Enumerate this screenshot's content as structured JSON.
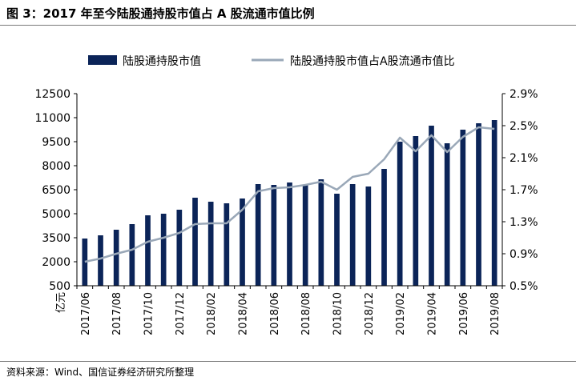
{
  "title": "图 3：2017 年至今陆股通持股市值占 A 股流通市值比例",
  "source": "资料来源：Wind、国信证券经济研究所整理",
  "chart_data": {
    "type": "bar",
    "title": "",
    "xlabel": "",
    "ylabel": "亿元",
    "y2label": "",
    "ylim": [
      500,
      12500
    ],
    "y2lim": [
      0.5,
      2.9
    ],
    "yticks": [
      "500",
      "2000",
      "3500",
      "5000",
      "6500",
      "8000",
      "9500",
      "11000",
      "12500"
    ],
    "y2ticks": [
      "0.5%",
      "0.9%",
      "1.3%",
      "1.7%",
      "2.1%",
      "2.5%",
      "2.9%"
    ],
    "xtick_labels": [
      "2017/06",
      "2017/08",
      "2017/10",
      "2017/12",
      "2018/02",
      "2018/04",
      "2018/06",
      "2018/08",
      "2018/10",
      "2018/12",
      "2019/02",
      "2019/04",
      "2019/06",
      "2019/08"
    ],
    "legend_position": "top",
    "grid": false,
    "colors": {
      "bar": "#0b2458",
      "line": "#9aa8b8"
    },
    "series": [
      {
        "name": "陆股通持股市值",
        "type": "bar",
        "axis": "left",
        "values": [
          3450,
          3650,
          4000,
          4350,
          4900,
          5000,
          5250,
          6000,
          5750,
          5650,
          5950,
          6850,
          6800,
          6950,
          6800,
          7150,
          6250,
          6850,
          6700,
          7800,
          9500,
          9850,
          10500,
          9400,
          10250,
          10650,
          10850
        ]
      },
      {
        "name": "陆股通持股市值占A股流通市值比",
        "type": "line",
        "axis": "right",
        "values": [
          0.8,
          0.84,
          0.9,
          0.95,
          1.05,
          1.1,
          1.16,
          1.27,
          1.28,
          1.28,
          1.45,
          1.68,
          1.72,
          1.73,
          1.76,
          1.8,
          1.7,
          1.86,
          1.9,
          2.08,
          2.35,
          2.18,
          2.38,
          2.17,
          2.36,
          2.48,
          2.46
        ]
      }
    ]
  }
}
